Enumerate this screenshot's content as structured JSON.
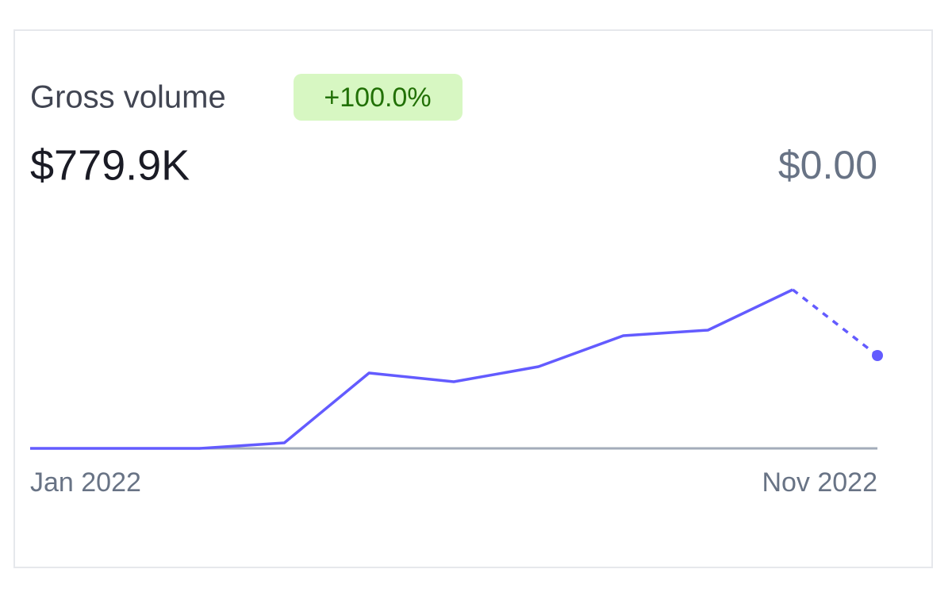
{
  "chart_data": {
    "type": "line",
    "title": "Gross volume",
    "change_badge": "+100.0%",
    "total": "$779.9K",
    "current_value": "$0.00",
    "categories": [
      "Jan 2022",
      null,
      null,
      null,
      null,
      null,
      null,
      null,
      null,
      null,
      "Nov 2022"
    ],
    "series": [
      {
        "color": "#635bff",
        "values": [
          0,
          0,
          0,
          7,
          95,
          84,
          103,
          142,
          149,
          200,
          117
        ]
      }
    ],
    "ylim": [
      0,
      200
    ],
    "last_segment_dashed": true
  }
}
